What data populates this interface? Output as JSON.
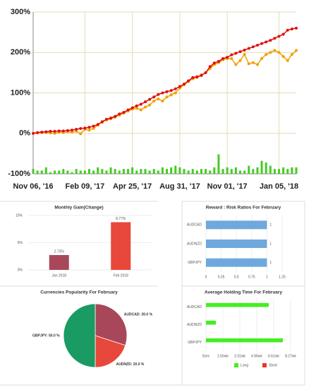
{
  "chart_data": [
    {
      "type": "line",
      "categories": [
        "Nov 06, '16",
        null,
        null,
        null,
        null,
        null,
        null,
        null,
        null,
        null,
        null,
        null,
        "Feb 09, '17",
        null,
        null,
        null,
        null,
        null,
        null,
        null,
        null,
        null,
        null,
        "Apr 25, '17",
        null,
        null,
        null,
        null,
        null,
        null,
        null,
        null,
        null,
        null,
        "Aug 31, '17",
        null,
        null,
        null,
        null,
        null,
        null,
        null,
        null,
        null,
        null,
        "Nov 01, '17",
        null,
        null,
        null,
        null,
        null,
        null,
        null,
        null,
        null,
        null,
        null,
        "Jan 05, '18",
        null,
        null,
        null,
        null
      ],
      "series": [
        {
          "color": "#f0a000",
          "values": [
            0,
            1,
            2,
            2,
            1,
            0,
            3,
            2,
            4,
            3,
            5,
            -1,
            10,
            8,
            12,
            20,
            30,
            33,
            36,
            40,
            45,
            50,
            55,
            60,
            62,
            58,
            65,
            70,
            80,
            85,
            80,
            90,
            95,
            100,
            112,
            120,
            128,
            135,
            138,
            145,
            150,
            160,
            170,
            175,
            182,
            185,
            185,
            170,
            180,
            195,
            172,
            175,
            170,
            185,
            195,
            200,
            205,
            200,
            190,
            180,
            195,
            205
          ]
        },
        {
          "color": "#e01010",
          "values": [
            0,
            2,
            3,
            4,
            5,
            5,
            6,
            6,
            7,
            8,
            10,
            12,
            13,
            15,
            18,
            22,
            28,
            35,
            38,
            42,
            48,
            52,
            58,
            63,
            68,
            72,
            78,
            84,
            90,
            96,
            100,
            103,
            106,
            110,
            116,
            122,
            130,
            138,
            140,
            143,
            150,
            165,
            174,
            178,
            185,
            188,
            194,
            198,
            202,
            206,
            210,
            214,
            218,
            222,
            226,
            230,
            235,
            240,
            245,
            255,
            258,
            260
          ]
        },
        {
          "type": "bar",
          "axis": "y2",
          "color": "#44cc22",
          "values": [
            3,
            2,
            2,
            4,
            1,
            2,
            2,
            3,
            2,
            1,
            3,
            2,
            2,
            3,
            2,
            4,
            3,
            2,
            4,
            3,
            2,
            3,
            3,
            4,
            2,
            3,
            3,
            2,
            3,
            2,
            4,
            3,
            4,
            5,
            4,
            3,
            2,
            3,
            2,
            3,
            3,
            2,
            4,
            12,
            3,
            4,
            3,
            4,
            2,
            2,
            5,
            3,
            4,
            8,
            7,
            5,
            3,
            3,
            4,
            3,
            4,
            4
          ]
        }
      ],
      "ylim": [
        -100,
        300
      ],
      "yticks": [
        {
          "value": -100,
          "label": "-100%"
        },
        {
          "value": 0,
          "label": "0%"
        },
        {
          "value": 100,
          "label": "100%"
        },
        {
          "value": 200,
          "label": "200%"
        },
        {
          "value": 300,
          "label": "300%"
        }
      ],
      "y2lim": [
        0,
        100
      ],
      "grid": true
    },
    {
      "type": "bar",
      "title": "Monthly Gain(Change)",
      "categories": [
        "Jan 2018",
        "Feb 2018"
      ],
      "values": [
        2.73,
        8.77
      ],
      "value_labels": [
        "2.73%",
        "8.77%"
      ],
      "colors": [
        "#a8475a",
        "#e8473b"
      ],
      "ylim": [
        0,
        10
      ],
      "yticks": [
        {
          "value": 0,
          "label": "0%"
        },
        {
          "value": 5,
          "label": "5%"
        },
        {
          "value": 10,
          "label": "10%"
        }
      ]
    },
    {
      "type": "hbar",
      "title": "Reward : Risk Ratios For February",
      "categories": [
        "AUDCAD",
        "AUDNZD",
        "GBPJPY"
      ],
      "values": [
        1,
        1,
        1
      ],
      "color": "#6fa8dc",
      "xlim": [
        0,
        1.25
      ],
      "xticks": [
        0,
        0.25,
        0.5,
        0.75,
        1,
        1.25
      ]
    },
    {
      "type": "pie",
      "title": "Currencies Popularity For February",
      "categories": [
        "AUDCAD",
        "AUDNZD",
        "GBPJPY"
      ],
      "values": [
        30,
        20,
        50
      ],
      "value_labels": [
        "AUDCAD: 30.0 %",
        "AUDNZD: 20.0 %",
        "GBPJPY: 50.0 %"
      ],
      "colors": [
        "#a8475a",
        "#e8473b",
        "#1a9b63"
      ]
    },
    {
      "type": "hbar",
      "title": "Average Holding Time For February",
      "categories": [
        "AUDCAD",
        "AUDNZD",
        "GBPJPY"
      ],
      "series": [
        {
          "name": "Long",
          "color": "#44ee22",
          "values": [
            6.13,
            0.97,
            7.51
          ]
        },
        {
          "name": "Short",
          "color": "#ee3322",
          "values": [
            0,
            0,
            0
          ]
        }
      ],
      "xlim": [
        0,
        8.27
      ],
      "xticks": [
        {
          "value": 0,
          "label": "0sec"
        },
        {
          "value": 1.65,
          "label": "1.65wk"
        },
        {
          "value": 3.31,
          "label": "3.31wk"
        },
        {
          "value": 4.96,
          "label": "4.96wk"
        },
        {
          "value": 6.61,
          "label": "6.61wk"
        },
        {
          "value": 8.27,
          "label": "8.27wk"
        }
      ],
      "legend": "bottom"
    }
  ]
}
